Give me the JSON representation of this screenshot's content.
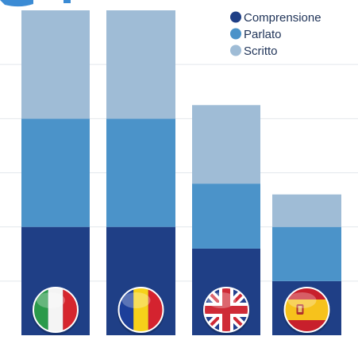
{
  "chart_data": {
    "type": "bar",
    "stacked": true,
    "categories": [
      "Italia",
      "Romania",
      "Regno Unito",
      "Spagna"
    ],
    "category_icons": [
      "italy-flag-icon",
      "romania-flag-icon",
      "uk-flag-icon",
      "spain-flag-icon"
    ],
    "series": [
      {
        "name": "Comprensione",
        "color": "#1f3f86",
        "values": [
          2,
          2,
          1.6,
          1
        ]
      },
      {
        "name": "Parlato",
        "color": "#4b93c9",
        "values": [
          2,
          2,
          1.2,
          1
        ]
      },
      {
        "name": "Scritto",
        "color": "#9fbcd6",
        "values": [
          2,
          2,
          1.45,
          0.6
        ]
      }
    ],
    "ylim": [
      0,
      6
    ],
    "grid": true,
    "legend_position": "top-right"
  }
}
